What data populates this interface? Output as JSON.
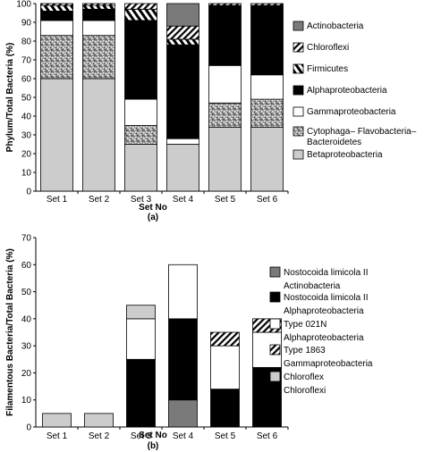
{
  "chart_data": [
    {
      "type": "bar",
      "stacked": true,
      "panel_label": "(a)",
      "xlabel": "Set No",
      "ylabel": "Phylum/Total Bacteria (%)",
      "ylim": [
        0,
        100
      ],
      "yticks": [
        0,
        10,
        20,
        30,
        40,
        50,
        60,
        70,
        80,
        90,
        100
      ],
      "categories": [
        "Set 1",
        "Set 2",
        "Set 3",
        "Set 4",
        "Set 5",
        "Set 6"
      ],
      "legend_position": "right",
      "series": [
        {
          "name": "Betaproteobacteria",
          "pattern": "light-grey",
          "values": [
            60,
            60,
            25,
            25,
            34,
            34
          ]
        },
        {
          "name": "Cytophaga–Flavobacteria–Bacteroidetes",
          "pattern": "speckled",
          "values": [
            23,
            23,
            10,
            0,
            13,
            15
          ]
        },
        {
          "name": "Gammaproteobacteria",
          "pattern": "white",
          "values": [
            8,
            8,
            14,
            3,
            20,
            13
          ]
        },
        {
          "name": "Alphaproteobacteria",
          "pattern": "black",
          "values": [
            5,
            6,
            42,
            50,
            32,
            37
          ]
        },
        {
          "name": "Firmicutes",
          "pattern": "hatched",
          "values": [
            3,
            2,
            6,
            3,
            0,
            0
          ]
        },
        {
          "name": "Chloroflexi",
          "pattern": "diagonal-stripe",
          "values": [
            1,
            1,
            3,
            7,
            1,
            1
          ]
        },
        {
          "name": "Actinobacteria",
          "pattern": "dark-grey",
          "values": [
            0,
            0,
            0,
            12,
            0,
            0
          ]
        }
      ]
    },
    {
      "type": "bar",
      "stacked": true,
      "panel_label": "(b)",
      "xlabel": "Set No",
      "ylabel": "Filamentous Bacteria/Total Bacteria (%)",
      "ylim": [
        0,
        70
      ],
      "yticks": [
        0,
        10,
        20,
        30,
        40,
        50,
        60,
        70
      ],
      "categories": [
        "Set 1",
        "Set 2",
        "Set 3",
        "Set 4",
        "Set 5",
        "Set 6"
      ],
      "legend_position": "right",
      "series": [
        {
          "name": "Nostocoida limicola II Actinobacteria",
          "pattern": "dark-grey",
          "values": [
            0,
            0,
            0,
            10,
            0,
            0
          ]
        },
        {
          "name": "Nostocoida limicola II Alphaproteobacteria",
          "pattern": "black",
          "values": [
            0,
            0,
            25,
            30,
            14,
            22
          ]
        },
        {
          "name": "Type 021N Alphaproteobacteria",
          "pattern": "white",
          "values": [
            0,
            0,
            15,
            20,
            16,
            13
          ]
        },
        {
          "name": "Type 1863 Gammaproteobacteria",
          "pattern": "diagonal-stripe",
          "values": [
            0,
            0,
            0,
            0,
            5,
            5
          ]
        },
        {
          "name": "Chloroflexi",
          "pattern": "light-grey",
          "values": [
            5,
            5,
            5,
            0,
            0,
            0
          ]
        }
      ]
    }
  ]
}
